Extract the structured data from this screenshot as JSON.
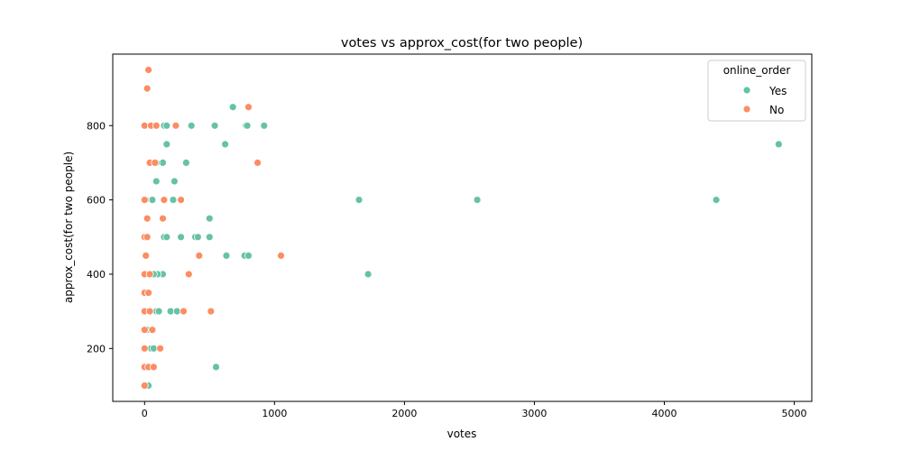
{
  "chart_data": {
    "type": "scatter",
    "title": "votes vs approx_cost(for two people)",
    "xlabel": "votes",
    "ylabel": "approx_cost(for two people)",
    "xlim": [
      -245,
      5135
    ],
    "ylim": [
      57.5,
      992.5
    ],
    "xticks": [
      0,
      1000,
      2000,
      3000,
      4000,
      5000
    ],
    "yticks": [
      200,
      400,
      600,
      800
    ],
    "grid": false,
    "legend": {
      "title": "online_order",
      "placement": "top-right"
    },
    "series": [
      {
        "name": "Yes",
        "color": "#66c2a5",
        "points": [
          [
            680,
            850
          ],
          [
            920,
            800
          ],
          [
            540,
            800
          ],
          [
            780,
            800
          ],
          [
            790,
            800
          ],
          [
            360,
            800
          ],
          [
            150,
            800
          ],
          [
            170,
            800
          ],
          [
            620,
            750
          ],
          [
            170,
            750
          ],
          [
            4880,
            750
          ],
          [
            320,
            700
          ],
          [
            140,
            700
          ],
          [
            90,
            700
          ],
          [
            90,
            650
          ],
          [
            230,
            650
          ],
          [
            1650,
            600
          ],
          [
            2560,
            600
          ],
          [
            4400,
            600
          ],
          [
            220,
            600
          ],
          [
            150,
            600
          ],
          [
            60,
            600
          ],
          [
            10,
            600
          ],
          [
            500,
            550
          ],
          [
            150,
            500
          ],
          [
            170,
            500
          ],
          [
            280,
            500
          ],
          [
            390,
            500
          ],
          [
            410,
            500
          ],
          [
            500,
            500
          ],
          [
            10,
            500
          ],
          [
            630,
            450
          ],
          [
            770,
            450
          ],
          [
            800,
            450
          ],
          [
            1720,
            400
          ],
          [
            140,
            400
          ],
          [
            100,
            400
          ],
          [
            70,
            400
          ],
          [
            90,
            300
          ],
          [
            110,
            300
          ],
          [
            200,
            300
          ],
          [
            250,
            300
          ],
          [
            10,
            300
          ],
          [
            20,
            250
          ],
          [
            50,
            200
          ],
          [
            70,
            200
          ],
          [
            550,
            150
          ],
          [
            30,
            100
          ]
        ]
      },
      {
        "name": "No",
        "color": "#fc8d62",
        "points": [
          [
            30,
            950
          ],
          [
            20,
            900
          ],
          [
            800,
            850
          ],
          [
            0,
            800
          ],
          [
            50,
            800
          ],
          [
            90,
            800
          ],
          [
            240,
            800
          ],
          [
            870,
            700
          ],
          [
            40,
            700
          ],
          [
            80,
            700
          ],
          [
            0,
            600
          ],
          [
            150,
            600
          ],
          [
            280,
            600
          ],
          [
            20,
            550
          ],
          [
            140,
            550
          ],
          [
            0,
            500
          ],
          [
            20,
            500
          ],
          [
            10,
            450
          ],
          [
            420,
            450
          ],
          [
            1050,
            450
          ],
          [
            0,
            400
          ],
          [
            40,
            400
          ],
          [
            340,
            400
          ],
          [
            0,
            350
          ],
          [
            30,
            350
          ],
          [
            0,
            300
          ],
          [
            40,
            300
          ],
          [
            300,
            300
          ],
          [
            510,
            300
          ],
          [
            0,
            250
          ],
          [
            60,
            250
          ],
          [
            0,
            200
          ],
          [
            120,
            200
          ],
          [
            0,
            150
          ],
          [
            30,
            150
          ],
          [
            70,
            150
          ],
          [
            0,
            100
          ]
        ]
      }
    ]
  }
}
